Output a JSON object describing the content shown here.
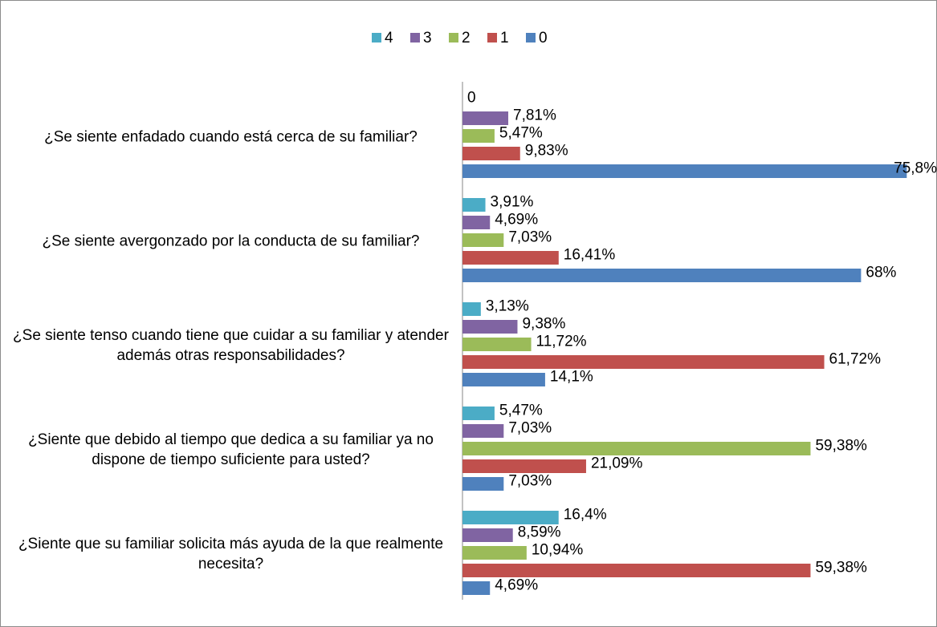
{
  "chart_data": {
    "type": "barh",
    "categories": [
      "¿Se siente enfadado cuando está cerca de su familiar?",
      "¿Se siente avergonzado por la conducta de su familiar?",
      "¿Se siente tenso cuando tiene que cuidar a su familiar y atender además otras responsabilidades?",
      "¿Siente que debido al tiempo que dedica a su familiar ya no dispone de tiempo suficiente para usted?",
      "¿Siente que su familiar solicita más ayuda de la que realmente necesita?"
    ],
    "series": [
      {
        "name": "4",
        "color": "#4bacc6",
        "values": [
          0,
          3.91,
          3.13,
          5.47,
          16.4
        ],
        "value_labels": [
          "0",
          "3,91%",
          "3,13%",
          "5,47%",
          "16,4%"
        ]
      },
      {
        "name": "3",
        "color": "#8064a2",
        "values": [
          7.81,
          4.69,
          9.38,
          7.03,
          8.59
        ],
        "value_labels": [
          "7,81%",
          "4,69%",
          "9,38%",
          "7,03%",
          "8,59%"
        ]
      },
      {
        "name": "2",
        "color": "#9bbb59",
        "values": [
          5.47,
          7.03,
          11.72,
          59.38,
          10.94
        ],
        "value_labels": [
          "5,47%",
          "7,03%",
          "11,72%",
          "59,38%",
          "10,94%"
        ]
      },
      {
        "name": "1",
        "color": "#c0504d",
        "values": [
          9.83,
          16.41,
          61.72,
          21.09,
          59.38
        ],
        "value_labels": [
          "9,83%",
          "16,41%",
          "61,72%",
          "21,09%",
          "59,38%"
        ]
      },
      {
        "name": "0",
        "color": "#4f81bd",
        "values": [
          75.8,
          68,
          14.1,
          7.03,
          4.69
        ],
        "value_labels": [
          "75,8%",
          "68%",
          "14,1%",
          "7,03%",
          "4,69%"
        ]
      }
    ],
    "xlim": [
      0,
      80
    ],
    "legend": "top"
  }
}
